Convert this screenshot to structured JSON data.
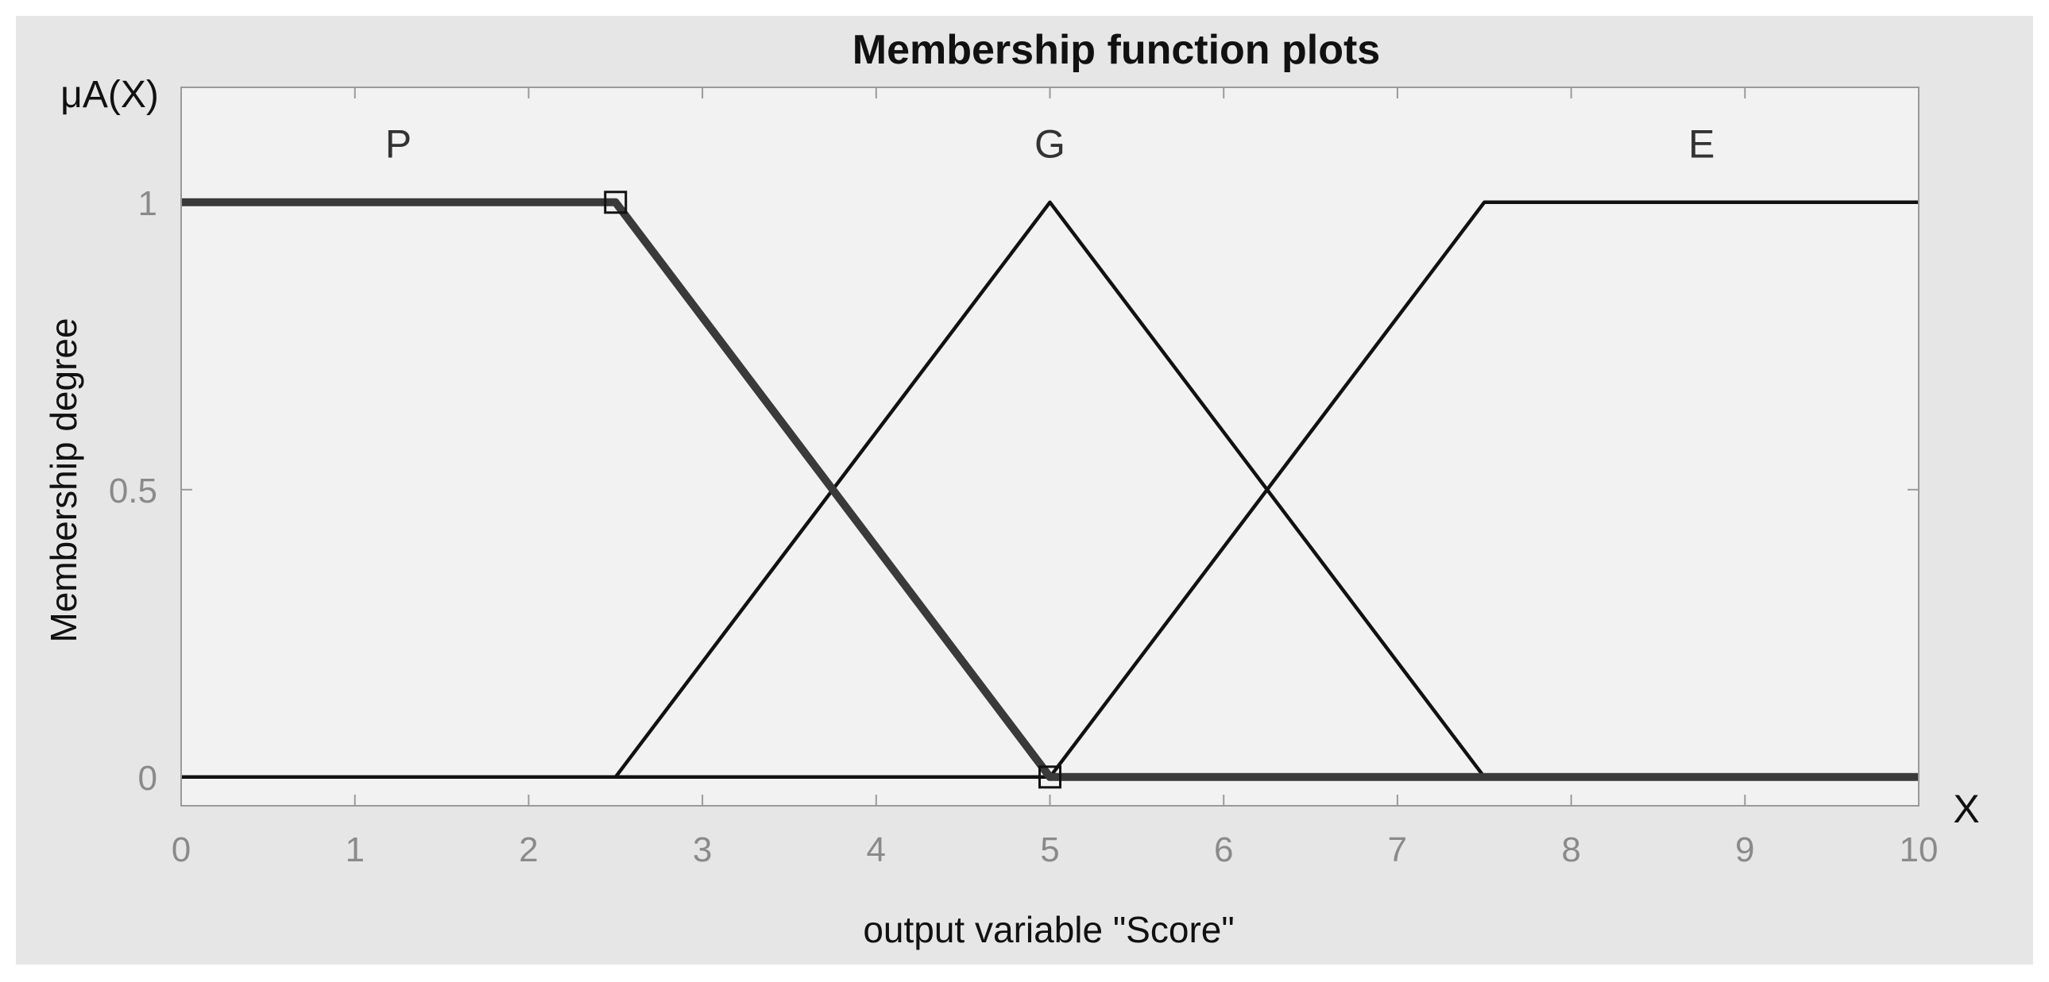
{
  "chart_data": {
    "type": "line",
    "title": "Membership function plots",
    "xlabel": "output variable \"Score\"",
    "ylabel": "Membership degree",
    "y_axis_symbol": "μA(X)",
    "x_axis_symbol": "X",
    "xlim": [
      0,
      10
    ],
    "ylim": [
      -0.05,
      1.2
    ],
    "x_ticks": [
      0,
      1,
      2,
      3,
      4,
      5,
      6,
      7,
      8,
      9,
      10
    ],
    "x_tick_labels": [
      "0",
      "1",
      "2",
      "3",
      "4",
      "5",
      "6",
      "7",
      "8",
      "9",
      "10"
    ],
    "y_ticks": [
      0,
      0.5,
      1
    ],
    "y_tick_labels": [
      "0",
      "0.5",
      "1"
    ],
    "grid": false,
    "series": [
      {
        "name": "P",
        "x": [
          0,
          2.5,
          5,
          10
        ],
        "y": [
          1,
          1,
          0,
          0
        ],
        "highlighted": true,
        "color": "#3a3a3a",
        "markers": [
          [
            2.5,
            1
          ],
          [
            5,
            0
          ]
        ]
      },
      {
        "name": "G",
        "x": [
          0,
          2.5,
          5,
          7.5,
          10
        ],
        "y": [
          0,
          0,
          1,
          0,
          0
        ],
        "highlighted": false,
        "color": "#111111"
      },
      {
        "name": "E",
        "x": [
          0,
          5,
          7.5,
          10
        ],
        "y": [
          0,
          0,
          1,
          1
        ],
        "highlighted": false,
        "color": "#111111"
      }
    ],
    "series_label_positions": [
      {
        "text": "P",
        "x": 1.25,
        "y": 1.1
      },
      {
        "text": "G",
        "x": 5,
        "y": 1.1
      },
      {
        "text": "E",
        "x": 8.75,
        "y": 1.1
      }
    ],
    "colors": {
      "figure_background": "#e6e6e6",
      "axes_background": "#f2f2f2",
      "axes_border": "#9a9a9a",
      "tick_label": "#8a8a8a",
      "text": "#1a1a1a"
    }
  }
}
